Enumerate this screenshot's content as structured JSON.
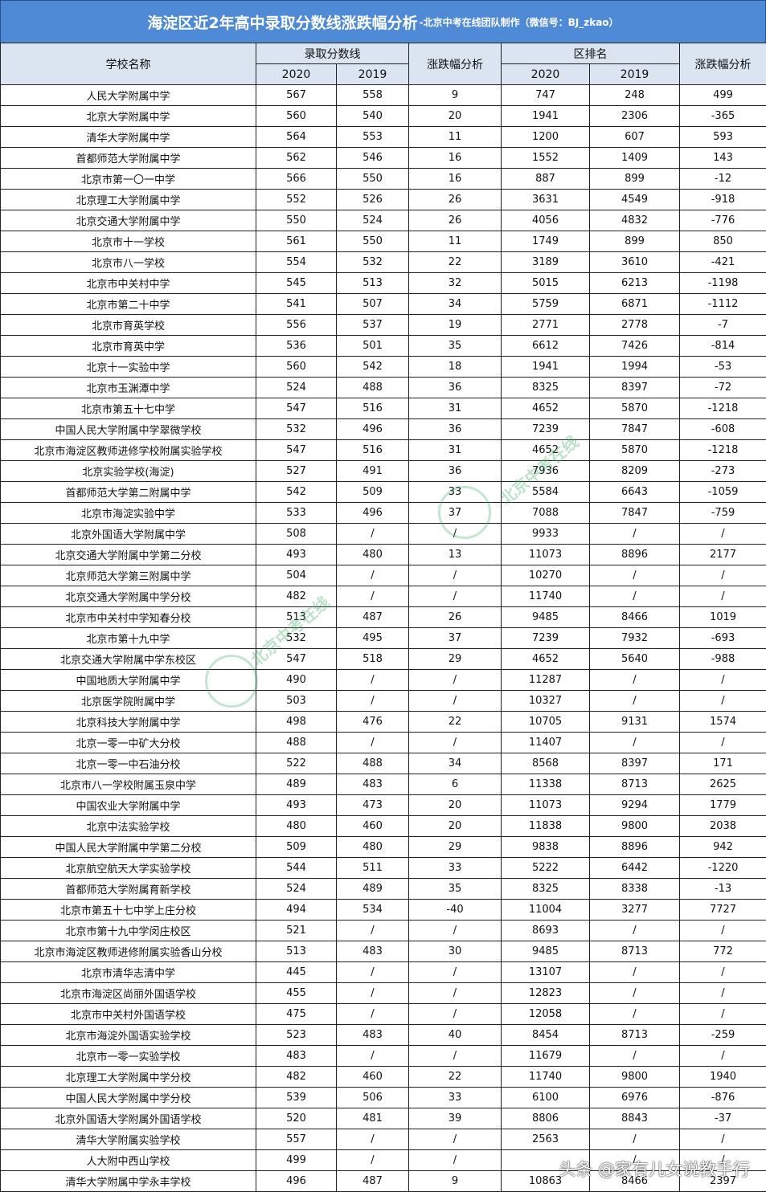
{
  "title": {
    "main": "海淀区近2年高中录取分数线涨跌幅分析",
    "sub": "-北京中考在线团队制作（微信号：BJ_zkao）"
  },
  "colors": {
    "title_bg": "#4f8ad6",
    "header_bg": "#dbe5f1"
  },
  "headers": {
    "school": "学校名称",
    "score": "录取分数线",
    "score_change": "涨跌幅分析",
    "rank": "区排名",
    "rank_change": "涨跌幅分析",
    "y2020": "2020",
    "y2019": "2019"
  },
  "rows": [
    [
      "人民大学附属中学",
      "567",
      "558",
      "9",
      "747",
      "248",
      "499"
    ],
    [
      "北京大学附属中学",
      "560",
      "540",
      "20",
      "1941",
      "2306",
      "-365"
    ],
    [
      "清华大学附属中学",
      "564",
      "553",
      "11",
      "1200",
      "607",
      "593"
    ],
    [
      "首都师范大学附属中学",
      "562",
      "546",
      "16",
      "1552",
      "1409",
      "143"
    ],
    [
      "北京市第一〇一中学",
      "566",
      "550",
      "16",
      "887",
      "899",
      "-12"
    ],
    [
      "北京理工大学附属中学",
      "552",
      "526",
      "26",
      "3631",
      "4549",
      "-918"
    ],
    [
      "北京交通大学附属中学",
      "550",
      "524",
      "26",
      "4056",
      "4832",
      "-776"
    ],
    [
      "北京市十一学校",
      "561",
      "550",
      "11",
      "1749",
      "899",
      "850"
    ],
    [
      "北京市八一学校",
      "554",
      "532",
      "22",
      "3189",
      "3610",
      "-421"
    ],
    [
      "北京市中关村中学",
      "545",
      "513",
      "32",
      "5015",
      "6213",
      "-1198"
    ],
    [
      "北京市第二十中学",
      "541",
      "507",
      "34",
      "5759",
      "6871",
      "-1112"
    ],
    [
      "北京市育英学校",
      "556",
      "537",
      "19",
      "2771",
      "2778",
      "-7"
    ],
    [
      "北京市育英中学",
      "536",
      "501",
      "35",
      "6612",
      "7426",
      "-814"
    ],
    [
      "北京十一实验中学",
      "560",
      "542",
      "18",
      "1941",
      "1994",
      "-53"
    ],
    [
      "北京市玉渊潭中学",
      "524",
      "488",
      "36",
      "8325",
      "8397",
      "-72"
    ],
    [
      "北京市第五十七中学",
      "547",
      "516",
      "31",
      "4652",
      "5870",
      "-1218"
    ],
    [
      "中国人民大学附属中学翠微学校",
      "532",
      "496",
      "36",
      "7239",
      "7847",
      "-608"
    ],
    [
      "北京市海淀区教师进修学校附属实验学校",
      "547",
      "516",
      "31",
      "4652",
      "5870",
      "-1218"
    ],
    [
      "北京实验学校(海淀)",
      "527",
      "491",
      "36",
      "7936",
      "8209",
      "-273"
    ],
    [
      "首都师范大学第二附属中学",
      "542",
      "509",
      "33",
      "5584",
      "6643",
      "-1059"
    ],
    [
      "北京市海淀实验中学",
      "533",
      "496",
      "37",
      "7088",
      "7847",
      "-759"
    ],
    [
      "北京外国语大学附属中学",
      "508",
      "/",
      "/",
      "9933",
      "/",
      "/"
    ],
    [
      "北京交通大学附属中学第二分校",
      "493",
      "480",
      "13",
      "11073",
      "8896",
      "2177"
    ],
    [
      "北京师范大学第三附属中学",
      "504",
      "/",
      "/",
      "10270",
      "/",
      "/"
    ],
    [
      "北京交通大学附属中学分校",
      "482",
      "/",
      "/",
      "11740",
      "/",
      "/"
    ],
    [
      "北京市中关村中学知春分校",
      "513",
      "487",
      "26",
      "9485",
      "8466",
      "1019"
    ],
    [
      "北京市第十九中学",
      "532",
      "495",
      "37",
      "7239",
      "7932",
      "-693"
    ],
    [
      "北京交通大学附属中学东校区",
      "547",
      "518",
      "29",
      "4652",
      "5640",
      "-988"
    ],
    [
      "中国地质大学附属中学",
      "490",
      "/",
      "/",
      "11287",
      "/",
      "/"
    ],
    [
      "北京医学院附属中学",
      "503",
      "/",
      "/",
      "10327",
      "/",
      "/"
    ],
    [
      "北京科技大学附属中学",
      "498",
      "476",
      "22",
      "10705",
      "9131",
      "1574"
    ],
    [
      "北京一零一中矿大分校",
      "488",
      "/",
      "/",
      "11407",
      "/",
      "/"
    ],
    [
      "北京一零一中石油分校",
      "522",
      "488",
      "34",
      "8568",
      "8397",
      "171"
    ],
    [
      "北京市八一学校附属玉泉中学",
      "489",
      "483",
      "6",
      "11338",
      "8713",
      "2625"
    ],
    [
      "中国农业大学附属中学",
      "493",
      "473",
      "20",
      "11073",
      "9294",
      "1779"
    ],
    [
      "北京中法实验学校",
      "480",
      "460",
      "20",
      "11838",
      "9800",
      "2038"
    ],
    [
      "中国人民大学附属中学第二分校",
      "509",
      "480",
      "29",
      "9838",
      "8896",
      "942"
    ],
    [
      "北京航空航天大学实验学校",
      "544",
      "511",
      "33",
      "5222",
      "6442",
      "-1220"
    ],
    [
      "首都师范大学附属育新学校",
      "524",
      "489",
      "35",
      "8325",
      "8338",
      "-13"
    ],
    [
      "北京市第五十七中学上庄分校",
      "494",
      "534",
      "-40",
      "11004",
      "3277",
      "7727"
    ],
    [
      "北京市第十九中学闵庄校区",
      "521",
      "/",
      "/",
      "8693",
      "/",
      "/"
    ],
    [
      "北京市海淀区教师进修附属实验香山分校",
      "513",
      "483",
      "30",
      "9485",
      "8713",
      "772"
    ],
    [
      "北京市清华志清中学",
      "445",
      "/",
      "/",
      "13107",
      "/",
      "/"
    ],
    [
      "北京市海淀区尚丽外国语学校",
      "455",
      "/",
      "/",
      "12823",
      "/",
      "/"
    ],
    [
      "北京市中关村外国语学校",
      "475",
      "/",
      "/",
      "12058",
      "/",
      "/"
    ],
    [
      "北京市海淀外国语实验学校",
      "523",
      "483",
      "40",
      "8454",
      "8713",
      "-259"
    ],
    [
      "北京市一零一实验学校",
      "483",
      "/",
      "/",
      "11679",
      "/",
      "/"
    ],
    [
      "北京理工大学附属中学分校",
      "482",
      "460",
      "22",
      "11740",
      "9800",
      "1940"
    ],
    [
      "中国人民大学附属中学分校",
      "539",
      "506",
      "33",
      "6100",
      "6976",
      "-876"
    ],
    [
      "北京外国语大学附属外国语学校",
      "520",
      "481",
      "39",
      "8806",
      "8843",
      "-37"
    ],
    [
      "清华大学附属实验学校",
      "557",
      "/",
      "/",
      "2563",
      "/",
      "/"
    ],
    [
      "人大附中西山学校",
      "499",
      "/",
      "/",
      "",
      "/",
      "/"
    ],
    [
      "清华大学附属中学永丰学校",
      "496",
      "487",
      "9",
      "10863",
      "8466",
      "2397"
    ]
  ],
  "watermark": {
    "text": "头条 @家有儿女说教手行",
    "logo_text": "北京中考在线 微信号：BJ_zkao"
  }
}
